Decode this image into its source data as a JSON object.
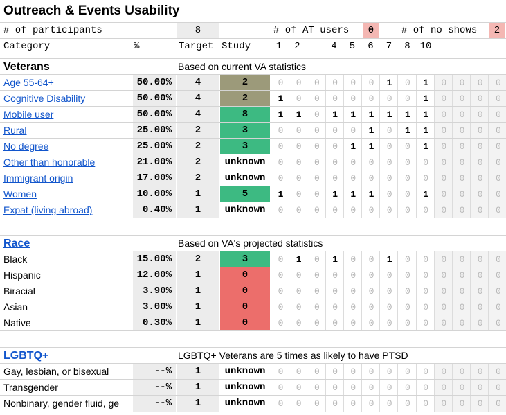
{
  "title": "Outreach & Events Usability",
  "header": {
    "participants_label": "# of participants",
    "participants_value": "8",
    "at_users_label": "# of AT users",
    "at_users_value": "0",
    "no_shows_label": "# of no shows",
    "no_shows_value": "2"
  },
  "columns": {
    "category": "Category",
    "percent": "%",
    "target": "Target",
    "study": "Study",
    "numbers": [
      "1",
      "2",
      "",
      "4",
      "5",
      "6",
      "7",
      "8",
      "10"
    ]
  },
  "veterans": {
    "title": "Veterans",
    "note": "Based on current VA statistics",
    "rows": [
      {
        "label": "Age 55-64+",
        "pct": "50.00%",
        "target": "4",
        "study": "2",
        "status": "olive",
        "grid": [
          0,
          0,
          0,
          0,
          0,
          0,
          1,
          0,
          1,
          0,
          0,
          0,
          0
        ]
      },
      {
        "label": "Cognitive Disability",
        "pct": "50.00%",
        "target": "4",
        "study": "2",
        "status": "olive",
        "grid": [
          1,
          0,
          0,
          0,
          0,
          0,
          0,
          0,
          1,
          0,
          0,
          0,
          0
        ]
      },
      {
        "label": "Mobile user",
        "pct": "50.00%",
        "target": "4",
        "study": "8",
        "status": "green",
        "grid": [
          1,
          1,
          0,
          1,
          1,
          1,
          1,
          1,
          1,
          0,
          0,
          0,
          0
        ]
      },
      {
        "label": "Rural",
        "pct": "25.00%",
        "target": "2",
        "study": "3",
        "status": "green",
        "grid": [
          0,
          0,
          0,
          0,
          0,
          1,
          0,
          1,
          1,
          0,
          0,
          0,
          0
        ]
      },
      {
        "label": "No degree",
        "pct": "25.00%",
        "target": "2",
        "study": "3",
        "status": "green",
        "grid": [
          0,
          0,
          0,
          0,
          1,
          1,
          0,
          0,
          1,
          0,
          0,
          0,
          0
        ]
      },
      {
        "label": "Other than honorable",
        "pct": "21.00%",
        "target": "2",
        "study": "unknown",
        "status": "none",
        "grid": [
          0,
          0,
          0,
          0,
          0,
          0,
          0,
          0,
          0,
          0,
          0,
          0,
          0
        ]
      },
      {
        "label": "Immigrant origin",
        "pct": "17.00%",
        "target": "2",
        "study": "unknown",
        "status": "none",
        "grid": [
          0,
          0,
          0,
          0,
          0,
          0,
          0,
          0,
          0,
          0,
          0,
          0,
          0
        ]
      },
      {
        "label": "Women",
        "pct": "10.00%",
        "target": "1",
        "study": "5",
        "status": "green",
        "grid": [
          1,
          0,
          0,
          1,
          1,
          1,
          0,
          0,
          1,
          0,
          0,
          0,
          0
        ]
      },
      {
        "label": "Expat (living abroad)",
        "pct": "0.40%",
        "target": "1",
        "study": "unknown",
        "status": "none",
        "grid": [
          0,
          0,
          0,
          0,
          0,
          0,
          0,
          0,
          0,
          0,
          0,
          0,
          0
        ]
      }
    ]
  },
  "race": {
    "title": "Race",
    "note": "Based on VA's projected statistics",
    "rows": [
      {
        "label": "Black",
        "pct": "15.00%",
        "target": "2",
        "study": "3",
        "status": "green",
        "grid": [
          0,
          1,
          0,
          1,
          0,
          0,
          1,
          0,
          0,
          0,
          0,
          0,
          0
        ]
      },
      {
        "label": "Hispanic",
        "pct": "12.00%",
        "target": "1",
        "study": "0",
        "status": "red",
        "grid": [
          0,
          0,
          0,
          0,
          0,
          0,
          0,
          0,
          0,
          0,
          0,
          0,
          0
        ]
      },
      {
        "label": "Biracial",
        "pct": "3.90%",
        "target": "1",
        "study": "0",
        "status": "red",
        "grid": [
          0,
          0,
          0,
          0,
          0,
          0,
          0,
          0,
          0,
          0,
          0,
          0,
          0
        ]
      },
      {
        "label": "Asian",
        "pct": "3.00%",
        "target": "1",
        "study": "0",
        "status": "red",
        "grid": [
          0,
          0,
          0,
          0,
          0,
          0,
          0,
          0,
          0,
          0,
          0,
          0,
          0
        ]
      },
      {
        "label": "Native",
        "pct": "0.30%",
        "target": "1",
        "study": "0",
        "status": "red",
        "grid": [
          0,
          0,
          0,
          0,
          0,
          0,
          0,
          0,
          0,
          0,
          0,
          0,
          0
        ]
      }
    ]
  },
  "lgbtq": {
    "title": "LGBTQ+",
    "note": "LGBTQ+ Veterans are 5 times as likely to have PTSD",
    "rows": [
      {
        "label": "Gay, lesbian, or bisexual",
        "pct": "--%",
        "target": "1",
        "study": "unknown",
        "status": "none",
        "grid": [
          0,
          0,
          0,
          0,
          0,
          0,
          0,
          0,
          0,
          0,
          0,
          0,
          0
        ]
      },
      {
        "label": "Transgender",
        "pct": "--%",
        "target": "1",
        "study": "unknown",
        "status": "none",
        "grid": [
          0,
          0,
          0,
          0,
          0,
          0,
          0,
          0,
          0,
          0,
          0,
          0,
          0
        ]
      },
      {
        "label": "Nonbinary, gender fluid, ge",
        "pct": "--%",
        "target": "1",
        "study": "unknown",
        "status": "none",
        "grid": [
          0,
          0,
          0,
          0,
          0,
          0,
          0,
          0,
          0,
          0,
          0,
          0,
          0
        ]
      }
    ]
  },
  "colors": {
    "olive": "#9c9a7a",
    "green": "#3dba82",
    "red": "#ec6e6b",
    "pink": "#f4b7b3",
    "link": "#1155cc"
  }
}
